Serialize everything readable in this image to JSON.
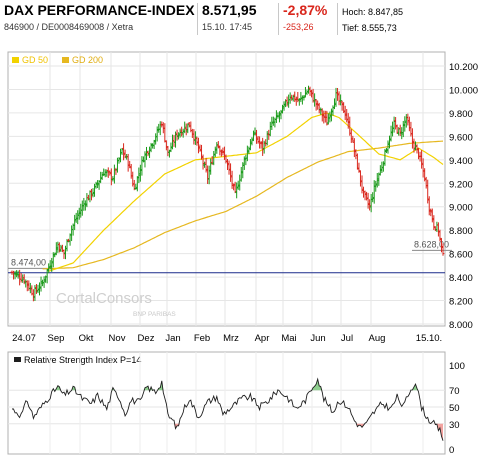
{
  "header": {
    "title": "DAX PERFORMANCE-INDEX",
    "subtitle": "846900 / DE0008469008 / Xetra",
    "price": "8.571,95",
    "timestamp": "15.10. 17:45",
    "change_pct": "-2,87%",
    "change_abs": "-253,26",
    "high": "Hoch: 8.847,85",
    "low": "Tief: 8.555,73"
  },
  "colors": {
    "up": "#1a9a1a",
    "down": "#d9261c",
    "gd50": "#f2d200",
    "gd200": "#e6b820",
    "level_line": "#1a2a8a",
    "rsi_fill_high": "#8fcf8f",
    "rsi_fill_low": "#f3a3a0"
  },
  "watermark": {
    "name": "CortalConsors",
    "sub": "BNP PARIBAS"
  },
  "chart_data": [
    {
      "type": "ohlc",
      "title": "DAX PERFORMANCE-INDEX",
      "legend": [
        "GD 50",
        "GD 200"
      ],
      "legend_position": "top-left",
      "x_ticks": [
        "24.07",
        "Sep",
        "Okt",
        "Nov",
        "Dez",
        "Jan",
        "Feb",
        "Mrz",
        "Apr",
        "Mai",
        "Jun",
        "Jul",
        "Aug",
        "15.10."
      ],
      "y_ticks": [
        "10.200",
        "10.000",
        "9.800",
        "9.600",
        "9.400",
        "9.200",
        "9.000",
        "8.800",
        "8.600",
        "8.400",
        "8.200",
        "8.000"
      ],
      "ylim": [
        8000,
        10200
      ],
      "grid": true,
      "close_anchors": [
        {
          "x": 0,
          "y": 8440
        },
        {
          "x": 8,
          "y": 8380
        },
        {
          "x": 14,
          "y": 8260
        },
        {
          "x": 20,
          "y": 8350
        },
        {
          "x": 26,
          "y": 8550
        },
        {
          "x": 30,
          "y": 8680
        },
        {
          "x": 34,
          "y": 8600
        },
        {
          "x": 38,
          "y": 8780
        },
        {
          "x": 42,
          "y": 8900
        },
        {
          "x": 48,
          "y": 9050
        },
        {
          "x": 54,
          "y": 9150
        },
        {
          "x": 60,
          "y": 9300
        },
        {
          "x": 66,
          "y": 9250
        },
        {
          "x": 72,
          "y": 9480
        },
        {
          "x": 76,
          "y": 9380
        },
        {
          "x": 80,
          "y": 9150
        },
        {
          "x": 86,
          "y": 9420
        },
        {
          "x": 92,
          "y": 9550
        },
        {
          "x": 98,
          "y": 9720
        },
        {
          "x": 102,
          "y": 9450
        },
        {
          "x": 108,
          "y": 9620
        },
        {
          "x": 116,
          "y": 9700
        },
        {
          "x": 122,
          "y": 9500
        },
        {
          "x": 128,
          "y": 9250
        },
        {
          "x": 134,
          "y": 9550
        },
        {
          "x": 140,
          "y": 9400
        },
        {
          "x": 146,
          "y": 9100
        },
        {
          "x": 152,
          "y": 9400
        },
        {
          "x": 158,
          "y": 9620
        },
        {
          "x": 164,
          "y": 9500
        },
        {
          "x": 170,
          "y": 9700
        },
        {
          "x": 176,
          "y": 9800
        },
        {
          "x": 182,
          "y": 9950
        },
        {
          "x": 188,
          "y": 9900
        },
        {
          "x": 194,
          "y": 10000
        },
        {
          "x": 200,
          "y": 9850
        },
        {
          "x": 206,
          "y": 9720
        },
        {
          "x": 212,
          "y": 9950
        },
        {
          "x": 218,
          "y": 9800
        },
        {
          "x": 222,
          "y": 9600
        },
        {
          "x": 226,
          "y": 9350
        },
        {
          "x": 230,
          "y": 9100
        },
        {
          "x": 234,
          "y": 9000
        },
        {
          "x": 238,
          "y": 9200
        },
        {
          "x": 242,
          "y": 9350
        },
        {
          "x": 246,
          "y": 9550
        },
        {
          "x": 250,
          "y": 9700
        },
        {
          "x": 254,
          "y": 9620
        },
        {
          "x": 258,
          "y": 9760
        },
        {
          "x": 262,
          "y": 9550
        },
        {
          "x": 266,
          "y": 9450
        },
        {
          "x": 270,
          "y": 9250
        },
        {
          "x": 273,
          "y": 9000
        },
        {
          "x": 276,
          "y": 8850
        },
        {
          "x": 279,
          "y": 8800
        },
        {
          "x": 282,
          "y": 8572
        }
      ],
      "gd50_anchors": [
        {
          "x": 24,
          "y": 8450
        },
        {
          "x": 40,
          "y": 8520
        },
        {
          "x": 60,
          "y": 8800
        },
        {
          "x": 80,
          "y": 9050
        },
        {
          "x": 100,
          "y": 9280
        },
        {
          "x": 120,
          "y": 9400
        },
        {
          "x": 140,
          "y": 9430
        },
        {
          "x": 160,
          "y": 9460
        },
        {
          "x": 180,
          "y": 9600
        },
        {
          "x": 196,
          "y": 9760
        },
        {
          "x": 206,
          "y": 9800
        },
        {
          "x": 214,
          "y": 9760
        },
        {
          "x": 226,
          "y": 9620
        },
        {
          "x": 240,
          "y": 9450
        },
        {
          "x": 254,
          "y": 9400
        },
        {
          "x": 266,
          "y": 9500
        },
        {
          "x": 276,
          "y": 9420
        },
        {
          "x": 282,
          "y": 9360
        }
      ],
      "gd200_anchors": [
        {
          "x": 20,
          "y": 8470
        },
        {
          "x": 40,
          "y": 8480
        },
        {
          "x": 60,
          "y": 8550
        },
        {
          "x": 80,
          "y": 8650
        },
        {
          "x": 100,
          "y": 8780
        },
        {
          "x": 120,
          "y": 8880
        },
        {
          "x": 140,
          "y": 8960
        },
        {
          "x": 160,
          "y": 9090
        },
        {
          "x": 180,
          "y": 9250
        },
        {
          "x": 200,
          "y": 9380
        },
        {
          "x": 220,
          "y": 9470
        },
        {
          "x": 240,
          "y": 9500
        },
        {
          "x": 260,
          "y": 9540
        },
        {
          "x": 282,
          "y": 9560
        }
      ],
      "horizontal_lines": [
        {
          "value": 8474,
          "label": "8.474,00"
        },
        {
          "value": 8628,
          "label": "8.628,00"
        },
        {
          "value": 8480,
          "label": ""
        }
      ]
    },
    {
      "type": "line",
      "title": "Relative Strength Index P=14",
      "y_ticks": [
        "100",
        "70",
        "50",
        "30",
        "0"
      ],
      "ylim": [
        0,
        100
      ],
      "upper_band": 70,
      "lower_band": 30,
      "anchors": [
        {
          "x": 0,
          "y": 48
        },
        {
          "x": 6,
          "y": 40
        },
        {
          "x": 10,
          "y": 58
        },
        {
          "x": 14,
          "y": 38
        },
        {
          "x": 20,
          "y": 52
        },
        {
          "x": 26,
          "y": 66
        },
        {
          "x": 30,
          "y": 74
        },
        {
          "x": 34,
          "y": 64
        },
        {
          "x": 40,
          "y": 72
        },
        {
          "x": 46,
          "y": 60
        },
        {
          "x": 52,
          "y": 54
        },
        {
          "x": 56,
          "y": 64
        },
        {
          "x": 62,
          "y": 48
        },
        {
          "x": 66,
          "y": 70
        },
        {
          "x": 70,
          "y": 62
        },
        {
          "x": 74,
          "y": 42
        },
        {
          "x": 78,
          "y": 58
        },
        {
          "x": 84,
          "y": 56
        },
        {
          "x": 88,
          "y": 74
        },
        {
          "x": 94,
          "y": 68
        },
        {
          "x": 98,
          "y": 80
        },
        {
          "x": 102,
          "y": 40
        },
        {
          "x": 106,
          "y": 32
        },
        {
          "x": 108,
          "y": 24
        },
        {
          "x": 112,
          "y": 46
        },
        {
          "x": 116,
          "y": 60
        },
        {
          "x": 122,
          "y": 38
        },
        {
          "x": 128,
          "y": 56
        },
        {
          "x": 134,
          "y": 62
        },
        {
          "x": 138,
          "y": 42
        },
        {
          "x": 144,
          "y": 50
        },
        {
          "x": 150,
          "y": 60
        },
        {
          "x": 156,
          "y": 62
        },
        {
          "x": 162,
          "y": 50
        },
        {
          "x": 168,
          "y": 58
        },
        {
          "x": 174,
          "y": 70
        },
        {
          "x": 180,
          "y": 62
        },
        {
          "x": 186,
          "y": 48
        },
        {
          "x": 192,
          "y": 58
        },
        {
          "x": 196,
          "y": 72
        },
        {
          "x": 200,
          "y": 84
        },
        {
          "x": 204,
          "y": 60
        },
        {
          "x": 210,
          "y": 44
        },
        {
          "x": 214,
          "y": 58
        },
        {
          "x": 220,
          "y": 50
        },
        {
          "x": 224,
          "y": 34
        },
        {
          "x": 228,
          "y": 26
        },
        {
          "x": 232,
          "y": 30
        },
        {
          "x": 236,
          "y": 42
        },
        {
          "x": 242,
          "y": 54
        },
        {
          "x": 248,
          "y": 48
        },
        {
          "x": 252,
          "y": 62
        },
        {
          "x": 256,
          "y": 50
        },
        {
          "x": 260,
          "y": 68
        },
        {
          "x": 264,
          "y": 80
        },
        {
          "x": 268,
          "y": 50
        },
        {
          "x": 272,
          "y": 36
        },
        {
          "x": 276,
          "y": 30
        },
        {
          "x": 280,
          "y": 22
        },
        {
          "x": 282,
          "y": 12
        }
      ]
    }
  ]
}
